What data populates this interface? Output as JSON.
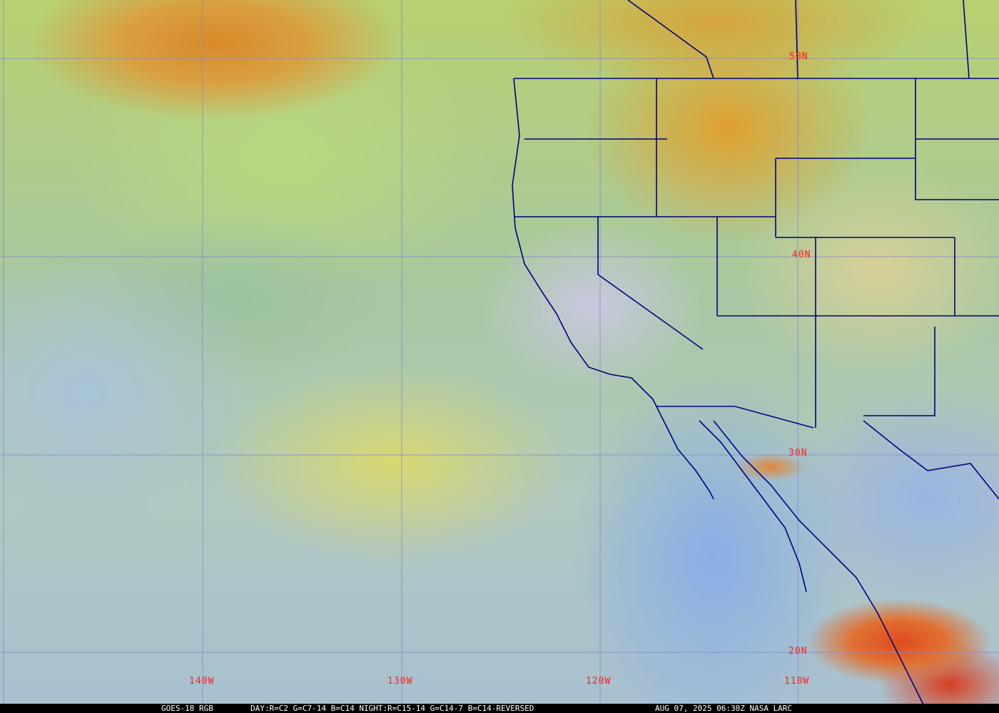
{
  "caption": {
    "satellite": "GOES-18 RGB",
    "recipe": "DAY:R=C2 G=C7-14 B=C14 NIGHT:R=C15-14 G=C14-7 B=C14-REVERSED",
    "timestamp": "AUG 07, 2025 06:30Z NASA LARC"
  },
  "grid": {
    "latitudes": [
      "50N",
      "40N",
      "30N",
      "20N"
    ],
    "longitudes": [
      "140W",
      "130W",
      "120W",
      "110W"
    ],
    "label_color": "#ff2020",
    "line_color": "#8080c0"
  },
  "colors": {
    "borders": "#000080"
  }
}
